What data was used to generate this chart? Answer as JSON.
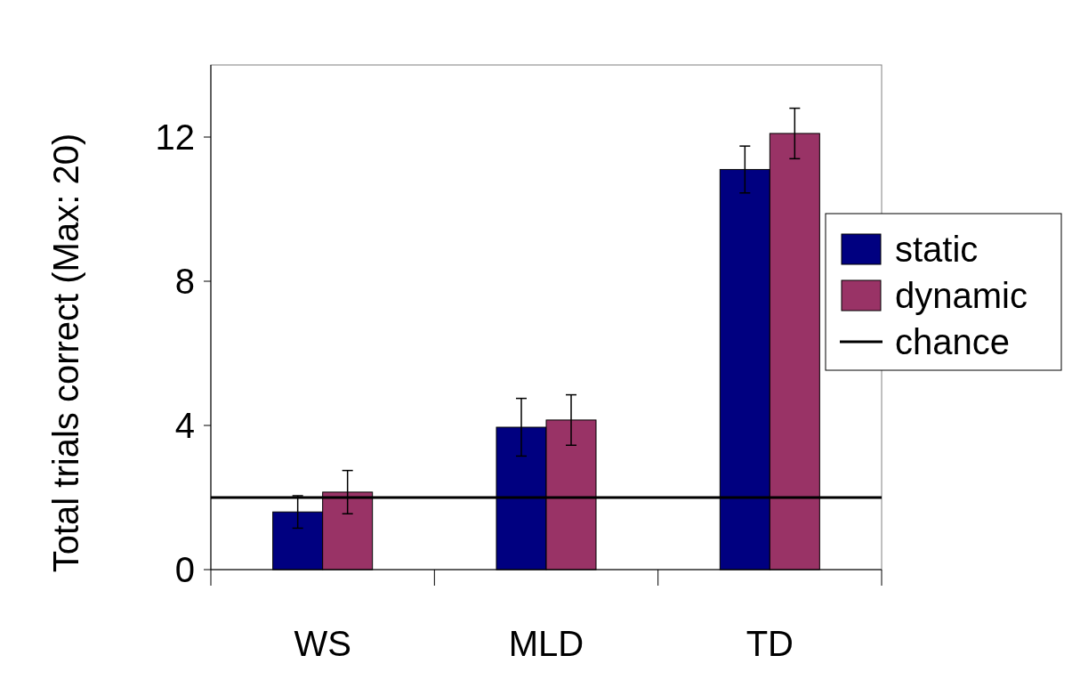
{
  "chart_data": {
    "type": "bar",
    "ylabel": "Total trials correct (Max: 20)",
    "categories": [
      "WS",
      "MLD",
      "TD"
    ],
    "series": [
      {
        "name": "static",
        "color": "#000080",
        "values": [
          1.6,
          3.95,
          11.1
        ],
        "errors": [
          0.45,
          0.8,
          0.65
        ]
      },
      {
        "name": "dynamic",
        "color": "#993366",
        "values": [
          2.15,
          4.15,
          12.1
        ],
        "errors": [
          0.6,
          0.7,
          0.7
        ]
      }
    ],
    "ylim": [
      0,
      14
    ],
    "yticks": [
      0,
      4,
      8,
      12
    ],
    "legend": "right",
    "ref_lines": [
      {
        "axis": "y",
        "value": 2,
        "label": "chance",
        "color": "#000000",
        "line_style": "solid"
      }
    ]
  }
}
